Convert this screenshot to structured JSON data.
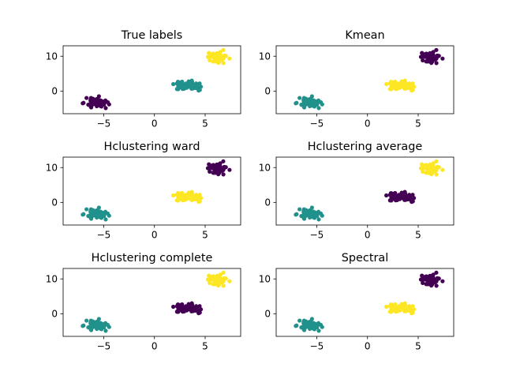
{
  "colors": {
    "purple": "#440154",
    "teal": "#21918c",
    "yellow": "#fde725"
  },
  "chart_data": [
    {
      "type": "scatter",
      "title": "True labels",
      "xlim": [
        -9,
        8.5
      ],
      "ylim": [
        -6.5,
        13
      ],
      "xticks": [
        -5,
        0,
        5
      ],
      "yticks": [
        0,
        10
      ],
      "xtick_labels": [
        "−5",
        "0",
        "5"
      ],
      "ytick_labels": [
        "0",
        "10"
      ],
      "grid": false,
      "clusters": [
        {
          "color": "purple",
          "center": [
            -5.8,
            -3.2
          ],
          "spread": [
            0.85,
            1.0
          ],
          "count": 70
        },
        {
          "color": "teal",
          "center": [
            3.2,
            1.6
          ],
          "spread": [
            0.95,
            0.9
          ],
          "count": 70
        },
        {
          "color": "yellow",
          "center": [
            6.3,
            9.8
          ],
          "spread": [
            0.65,
            1.0
          ],
          "count": 70
        }
      ]
    },
    {
      "type": "scatter",
      "title": "Kmean",
      "xlim": [
        -9,
        8.5
      ],
      "ylim": [
        -6.5,
        13
      ],
      "xticks": [
        -5,
        0,
        5
      ],
      "yticks": [
        0,
        10
      ],
      "xtick_labels": [
        "−5",
        "0",
        "5"
      ],
      "ytick_labels": [
        "0",
        "10"
      ],
      "grid": false,
      "clusters": [
        {
          "color": "teal",
          "center": [
            -5.8,
            -3.2
          ],
          "spread": [
            0.85,
            1.0
          ],
          "count": 70
        },
        {
          "color": "yellow",
          "center": [
            3.2,
            1.6
          ],
          "spread": [
            0.95,
            0.9
          ],
          "count": 70
        },
        {
          "color": "purple",
          "center": [
            6.3,
            9.8
          ],
          "spread": [
            0.65,
            1.0
          ],
          "count": 70
        }
      ]
    },
    {
      "type": "scatter",
      "title": "Hclustering ward",
      "xlim": [
        -9,
        8.5
      ],
      "ylim": [
        -6.5,
        13
      ],
      "xticks": [
        -5,
        0,
        5
      ],
      "yticks": [
        0,
        10
      ],
      "xtick_labels": [
        "−5",
        "0",
        "5"
      ],
      "ytick_labels": [
        "0",
        "10"
      ],
      "grid": false,
      "clusters": [
        {
          "color": "teal",
          "center": [
            -5.8,
            -3.2
          ],
          "spread": [
            0.85,
            1.0
          ],
          "count": 70
        },
        {
          "color": "yellow",
          "center": [
            3.2,
            1.6
          ],
          "spread": [
            0.95,
            0.9
          ],
          "count": 70
        },
        {
          "color": "purple",
          "center": [
            6.3,
            9.8
          ],
          "spread": [
            0.65,
            1.0
          ],
          "count": 70
        }
      ]
    },
    {
      "type": "scatter",
      "title": "Hclustering average",
      "xlim": [
        -9,
        8.5
      ],
      "ylim": [
        -6.5,
        13
      ],
      "xticks": [
        -5,
        0,
        5
      ],
      "yticks": [
        0,
        10
      ],
      "xtick_labels": [
        "−5",
        "0",
        "5"
      ],
      "ytick_labels": [
        "0",
        "10"
      ],
      "grid": false,
      "clusters": [
        {
          "color": "teal",
          "center": [
            -5.8,
            -3.2
          ],
          "spread": [
            0.85,
            1.0
          ],
          "count": 70
        },
        {
          "color": "purple",
          "center": [
            3.2,
            1.6
          ],
          "spread": [
            0.95,
            0.9
          ],
          "count": 70
        },
        {
          "color": "yellow",
          "center": [
            6.3,
            9.8
          ],
          "spread": [
            0.65,
            1.0
          ],
          "count": 70
        }
      ]
    },
    {
      "type": "scatter",
      "title": "Hclustering complete",
      "xlim": [
        -9,
        8.5
      ],
      "ylim": [
        -6.5,
        13
      ],
      "xticks": [
        -5,
        0,
        5
      ],
      "yticks": [
        0,
        10
      ],
      "xtick_labels": [
        "−5",
        "0",
        "5"
      ],
      "ytick_labels": [
        "0",
        "10"
      ],
      "grid": false,
      "clusters": [
        {
          "color": "teal",
          "center": [
            -5.8,
            -3.2
          ],
          "spread": [
            0.85,
            1.0
          ],
          "count": 70
        },
        {
          "color": "purple",
          "center": [
            3.2,
            1.6
          ],
          "spread": [
            0.95,
            0.9
          ],
          "count": 70
        },
        {
          "color": "yellow",
          "center": [
            6.3,
            9.8
          ],
          "spread": [
            0.65,
            1.0
          ],
          "count": 70
        }
      ]
    },
    {
      "type": "scatter",
      "title": "Spectral",
      "xlim": [
        -9,
        8.5
      ],
      "ylim": [
        -6.5,
        13
      ],
      "xticks": [
        -5,
        0,
        5
      ],
      "yticks": [
        0,
        10
      ],
      "xtick_labels": [
        "−5",
        "0",
        "5"
      ],
      "ytick_labels": [
        "0",
        "10"
      ],
      "grid": false,
      "clusters": [
        {
          "color": "teal",
          "center": [
            -5.8,
            -3.2
          ],
          "spread": [
            0.85,
            1.0
          ],
          "count": 70
        },
        {
          "color": "yellow",
          "center": [
            3.2,
            1.6
          ],
          "spread": [
            0.95,
            0.9
          ],
          "count": 70
        },
        {
          "color": "purple",
          "center": [
            6.3,
            9.8
          ],
          "spread": [
            0.65,
            1.0
          ],
          "count": 70
        }
      ]
    }
  ]
}
